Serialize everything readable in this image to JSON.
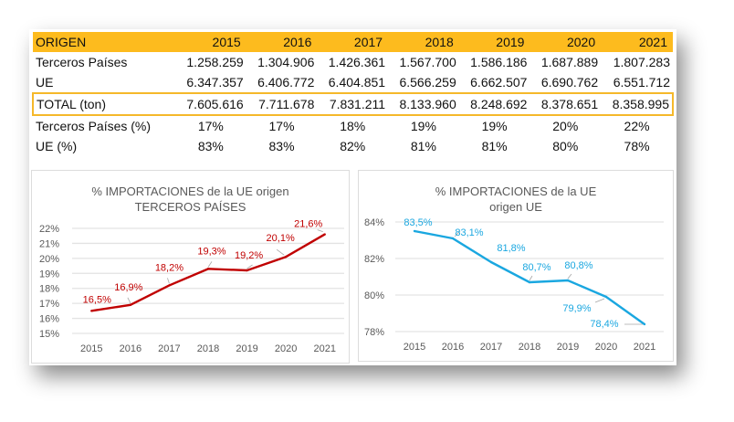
{
  "table": {
    "header": [
      "ORIGEN",
      "2015",
      "2016",
      "2017",
      "2018",
      "2019",
      "2020",
      "2021"
    ],
    "rows": [
      {
        "label": "Terceros Países",
        "values": [
          "1.258.259",
          "1.304.906",
          "1.426.361",
          "1.567.700",
          "1.586.186",
          "1.687.889",
          "1.807.283"
        ],
        "kind": "num"
      },
      {
        "label": "UE",
        "values": [
          "6.347.357",
          "6.406.772",
          "6.404.851",
          "6.566.259",
          "6.662.507",
          "6.690.762",
          "6.551.712"
        ],
        "kind": "num"
      },
      {
        "label": "TOTAL (ton)",
        "values": [
          "7.605.616",
          "7.711.678",
          "7.831.211",
          "8.133.960",
          "8.248.692",
          "8.378.651",
          "8.358.995"
        ],
        "kind": "total"
      },
      {
        "label": "Terceros Países (%)",
        "values": [
          "17%",
          "17%",
          "18%",
          "19%",
          "19%",
          "20%",
          "22%"
        ],
        "kind": "pct"
      },
      {
        "label": "UE (%)",
        "values": [
          "83%",
          "83%",
          "82%",
          "81%",
          "81%",
          "80%",
          "78%"
        ],
        "kind": "pct"
      }
    ],
    "header_color": "#fdbb1e",
    "total_border_color": "#f5b82a"
  },
  "chart_data": [
    {
      "type": "line",
      "title": [
        "% IMPORTACIONES de la UE origen",
        "TERCEROS PAÍSES"
      ],
      "x": [
        "2015",
        "2016",
        "2017",
        "2018",
        "2019",
        "2020",
        "2021"
      ],
      "series": [
        {
          "name": "Terceros Países",
          "values": [
            16.5,
            16.9,
            18.2,
            19.3,
            19.2,
            20.1,
            21.6
          ],
          "color": "#c00000"
        }
      ],
      "data_labels": [
        "16,5%",
        "16,9%",
        "18,2%",
        "19,3%",
        "19,2%",
        "20,1%",
        "21,6%"
      ],
      "ylim": [
        15,
        22
      ],
      "yticks": [
        15,
        16,
        17,
        18,
        19,
        20,
        21,
        22
      ],
      "ytick_labels": [
        "15%",
        "16%",
        "17%",
        "18%",
        "19%",
        "20%",
        "21%",
        "22%"
      ],
      "xlabel": "",
      "ylabel": "",
      "grid": true,
      "legend": "none"
    },
    {
      "type": "line",
      "title": [
        "% IMPORTACIONES de la UE",
        "origen  UE"
      ],
      "x": [
        "2015",
        "2016",
        "2017",
        "2018",
        "2019",
        "2020",
        "2021"
      ],
      "series": [
        {
          "name": "UE",
          "values": [
            83.5,
            83.1,
            81.8,
            80.7,
            80.8,
            79.9,
            78.4
          ],
          "color": "#1aa7e0"
        }
      ],
      "data_labels": [
        "83,5%",
        "83,1%",
        "81,8%",
        "80,7%",
        "80,8%",
        "79,9%",
        "78,4%"
      ],
      "ylim": [
        78,
        84
      ],
      "yticks": [
        78,
        80,
        82,
        84
      ],
      "ytick_labels": [
        "78%",
        "80%",
        "82%",
        "84%"
      ],
      "xlabel": "",
      "ylabel": "",
      "grid": true,
      "legend": "none"
    }
  ]
}
